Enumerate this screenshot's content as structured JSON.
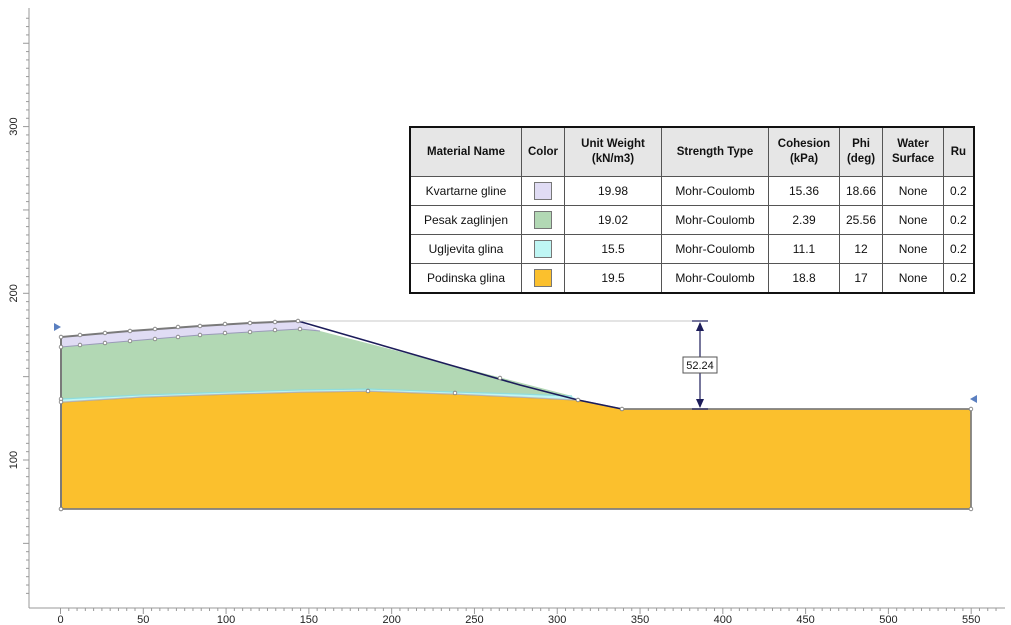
{
  "axes": {
    "x_ticks": [
      0,
      50,
      100,
      150,
      200,
      250,
      300,
      350,
      400,
      450,
      500,
      550
    ],
    "y_ticks": [
      100,
      200,
      300
    ]
  },
  "dimension": {
    "label": "52.24"
  },
  "table": {
    "headers": {
      "material_name": "Material Name",
      "color": "Color",
      "unit_weight": "Unit Weight (kN/m3)",
      "strength_type": "Strength Type",
      "cohesion": "Cohesion (kPa)",
      "phi": "Phi (deg)",
      "water_surface": "Water Surface",
      "ru": "Ru"
    },
    "rows": [
      {
        "name": "Kvartarne gline",
        "color": "#e0dcf4",
        "unit_weight": "19.98",
        "strength_type": "Mohr-Coulomb",
        "cohesion": "15.36",
        "phi": "18.66",
        "water_surface": "None",
        "ru": "0.2"
      },
      {
        "name": "Pesak zaglinjen",
        "color": "#b2d8b4",
        "unit_weight": "19.02",
        "strength_type": "Mohr-Coulomb",
        "cohesion": "2.39",
        "phi": "25.56",
        "water_surface": "None",
        "ru": "0.2"
      },
      {
        "name": "Ugljevita glina",
        "color": "#bff6f4",
        "unit_weight": "15.5",
        "strength_type": "Mohr-Coulomb",
        "cohesion": "11.1",
        "phi": "12",
        "water_surface": "None",
        "ru": "0.2"
      },
      {
        "name": "Podinska glina",
        "color": "#fbc02d",
        "unit_weight": "19.5",
        "strength_type": "Mohr-Coulomb",
        "cohesion": "18.8",
        "phi": "17",
        "water_surface": "None",
        "ru": "0.2"
      }
    ]
  },
  "colors": {
    "kvartarne": "#e0dcf4",
    "pesak": "#b2d8b4",
    "ugljevita": "#bff6f4",
    "podinska": "#fbc02d",
    "slope_line": "#1c1c5a",
    "boundary": "#8a8a8a",
    "marker": "#5a7fc0"
  }
}
